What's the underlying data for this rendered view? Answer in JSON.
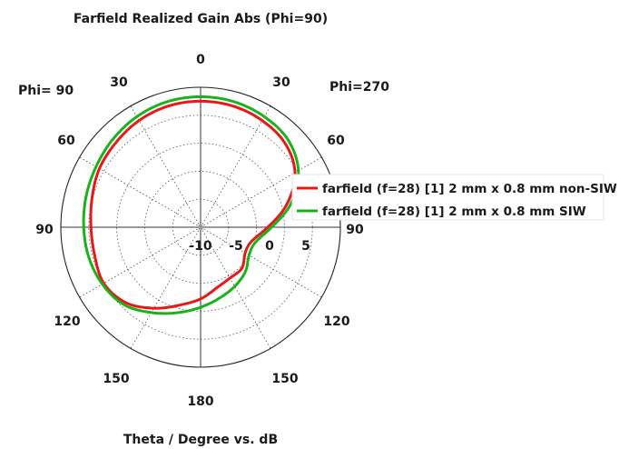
{
  "chart_data": {
    "type": "polar-line",
    "title": "Farfield Realized Gain Abs (Phi=90)",
    "xlabel": "Theta / Degree vs. dB",
    "phi_left_label": "Phi= 90",
    "phi_right_label": "Phi=270",
    "angle_labels": {
      "top": "0",
      "bottom": "180",
      "left": [
        "30",
        "60",
        "90",
        "120",
        "150"
      ],
      "right": [
        "30",
        "60",
        "90",
        "120",
        "150"
      ]
    },
    "radial_ticks": [
      "-10",
      "-5",
      "0",
      "5"
    ],
    "radial_range_db": [
      -15,
      10
    ],
    "angle_direction": "clockwise-from-top",
    "grid": true,
    "legend_position": "right",
    "series": [
      {
        "name": "farfield (f=28) [1] 2 mm x 0.8 mm non-SIW",
        "color": "#e8171a",
        "theta_deg": [
          0,
          15,
          30,
          45,
          60,
          75,
          90,
          105,
          120,
          135,
          150,
          165,
          180,
          195,
          210,
          225,
          240,
          255,
          270,
          285,
          300,
          315,
          330,
          345,
          360
        ],
        "gain_db": [
          7.5,
          7.4,
          7.0,
          6.3,
          4.5,
          1.0,
          -3.0,
          -5.5,
          -5.8,
          -4.6,
          -4.5,
          -3.8,
          -2.2,
          -0.6,
          1.7,
          4.0,
          5.0,
          4.6,
          4.6,
          5.1,
          5.9,
          6.4,
          7.0,
          7.4,
          7.5
        ]
      },
      {
        "name": "farfield (f=28) [1] 2 mm x 0.8 mm SIW",
        "color": "#1ab21a",
        "theta_deg": [
          0,
          15,
          30,
          45,
          60,
          75,
          90,
          105,
          120,
          135,
          150,
          165,
          180,
          195,
          210,
          225,
          240,
          255,
          270,
          285,
          300,
          315,
          330,
          345,
          360
        ],
        "gain_db": [
          8.3,
          8.2,
          7.8,
          7.1,
          5.2,
          1.8,
          -2.3,
          -4.8,
          -5.0,
          -3.7,
          -2.8,
          -1.9,
          -0.7,
          0.8,
          2.6,
          4.5,
          5.3,
          5.7,
          5.9,
          6.2,
          6.6,
          7.2,
          7.8,
          8.2,
          8.3
        ]
      }
    ]
  }
}
